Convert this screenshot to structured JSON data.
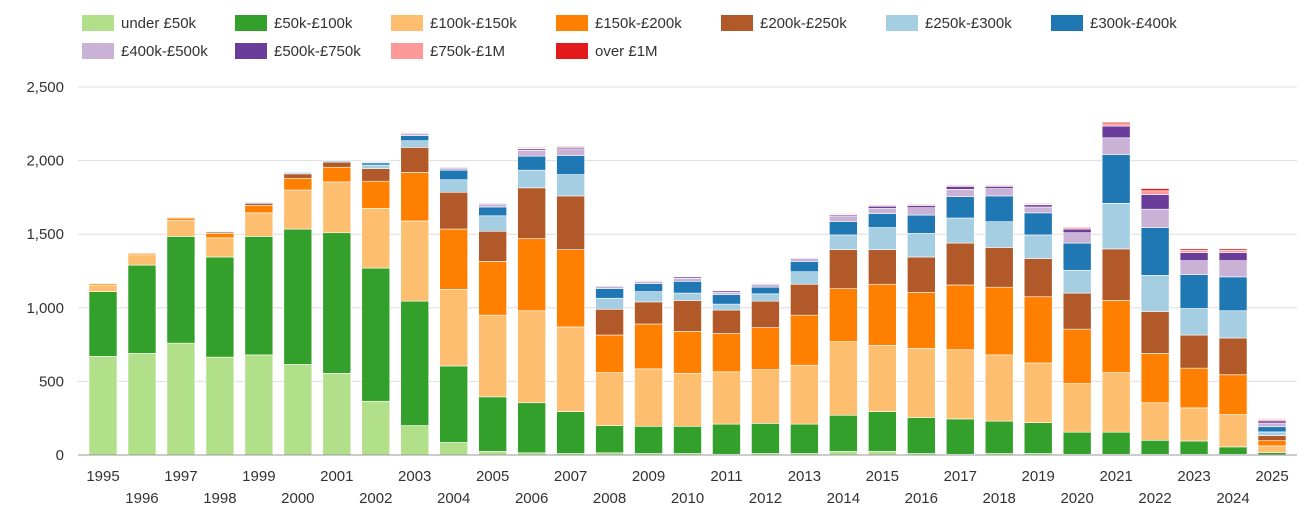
{
  "chart_data": {
    "type": "bar",
    "stacked": true,
    "title": "",
    "xlabel": "",
    "ylabel": "",
    "ylim": [
      0,
      2500
    ],
    "yticks": [
      "0",
      "500",
      "1,000",
      "1,500",
      "2,000",
      "2,500"
    ],
    "ytick_values": [
      0,
      500,
      1000,
      1500,
      2000,
      2500
    ],
    "grid": true,
    "legend_position": "top",
    "categories": [
      "1995",
      "1996",
      "1997",
      "1998",
      "1999",
      "2000",
      "2001",
      "2002",
      "2003",
      "2004",
      "2005",
      "2006",
      "2007",
      "2008",
      "2009",
      "2010",
      "2011",
      "2012",
      "2013",
      "2014",
      "2015",
      "2016",
      "2017",
      "2018",
      "2019",
      "2020",
      "2021",
      "2022",
      "2023",
      "2024",
      "2025"
    ],
    "series": [
      {
        "name": "under £50k",
        "color": "#b2df8a",
        "values": [
          670,
          690,
          760,
          665,
          680,
          615,
          555,
          365,
          200,
          85,
          25,
          15,
          10,
          15,
          10,
          10,
          5,
          10,
          10,
          25,
          25,
          10,
          5,
          10,
          10,
          5,
          5,
          5,
          5,
          5,
          2
        ]
      },
      {
        "name": "£50k-£100k",
        "color": "#33a02c",
        "values": [
          440,
          600,
          725,
          680,
          805,
          920,
          955,
          905,
          845,
          520,
          370,
          340,
          285,
          185,
          185,
          185,
          205,
          205,
          200,
          245,
          270,
          245,
          240,
          220,
          210,
          150,
          150,
          95,
          90,
          50,
          15
        ]
      },
      {
        "name": "£100k-£150k",
        "color": "#fdbf6f",
        "values": [
          45,
          70,
          110,
          130,
          160,
          265,
          345,
          405,
          545,
          520,
          555,
          625,
          575,
          360,
          390,
          360,
          355,
          365,
          400,
          500,
          450,
          470,
          470,
          450,
          405,
          330,
          405,
          255,
          225,
          220,
          45
        ]
      },
      {
        "name": "£150k-£200k",
        "color": "#ff7f00",
        "values": [
          10,
          10,
          15,
          30,
          50,
          80,
          100,
          185,
          330,
          410,
          365,
          490,
          525,
          255,
          305,
          285,
          260,
          285,
          340,
          360,
          415,
          380,
          440,
          460,
          450,
          370,
          490,
          335,
          270,
          270,
          35
        ]
      },
      {
        "name": "£200k-£250k",
        "color": "#b15928",
        "values": [
          3,
          5,
          5,
          10,
          15,
          30,
          35,
          85,
          170,
          250,
          205,
          345,
          365,
          175,
          150,
          210,
          160,
          180,
          210,
          265,
          235,
          240,
          285,
          270,
          260,
          245,
          350,
          285,
          225,
          250,
          35
        ]
      },
      {
        "name": "£250k-£300k",
        "color": "#a6cee3",
        "values": [
          2,
          3,
          3,
          5,
          5,
          10,
          10,
          25,
          45,
          85,
          105,
          120,
          145,
          75,
          70,
          50,
          40,
          50,
          85,
          100,
          150,
          160,
          170,
          175,
          160,
          155,
          310,
          245,
          180,
          185,
          25
        ]
      },
      {
        "name": "£300k-£400k",
        "color": "#1f78b4",
        "values": [
          0,
          1,
          2,
          3,
          5,
          5,
          5,
          15,
          35,
          65,
          60,
          95,
          130,
          65,
          55,
          80,
          65,
          45,
          70,
          90,
          95,
          125,
          145,
          175,
          150,
          185,
          330,
          325,
          230,
          230,
          35
        ]
      },
      {
        "name": "£400k-£500k",
        "color": "#cab2d6",
        "values": [
          0,
          0,
          0,
          2,
          2,
          2,
          3,
          5,
          15,
          15,
          20,
          40,
          45,
          15,
          15,
          20,
          15,
          20,
          20,
          35,
          35,
          50,
          50,
          50,
          40,
          70,
          115,
          125,
          95,
          110,
          25
        ]
      },
      {
        "name": "£500k-£750k",
        "color": "#6a3d9a",
        "values": [
          0,
          0,
          0,
          0,
          0,
          1,
          2,
          5,
          5,
          5,
          5,
          10,
          10,
          5,
          5,
          10,
          10,
          5,
          5,
          10,
          15,
          15,
          20,
          15,
          15,
          25,
          80,
          100,
          55,
          55,
          15
        ]
      },
      {
        "name": "£750k-£1M",
        "color": "#fb9a99",
        "values": [
          2,
          2,
          2,
          2,
          2,
          2,
          2,
          3,
          5,
          3,
          3,
          5,
          5,
          3,
          3,
          3,
          3,
          3,
          3,
          5,
          5,
          5,
          5,
          5,
          5,
          10,
          15,
          25,
          15,
          15,
          10
        ]
      },
      {
        "name": "over £1M",
        "color": "#e31a1c",
        "values": [
          1,
          1,
          1,
          1,
          1,
          2,
          2,
          2,
          3,
          2,
          2,
          5,
          5,
          2,
          2,
          2,
          2,
          2,
          2,
          5,
          5,
          5,
          5,
          5,
          5,
          5,
          10,
          15,
          10,
          10,
          5
        ]
      }
    ]
  }
}
